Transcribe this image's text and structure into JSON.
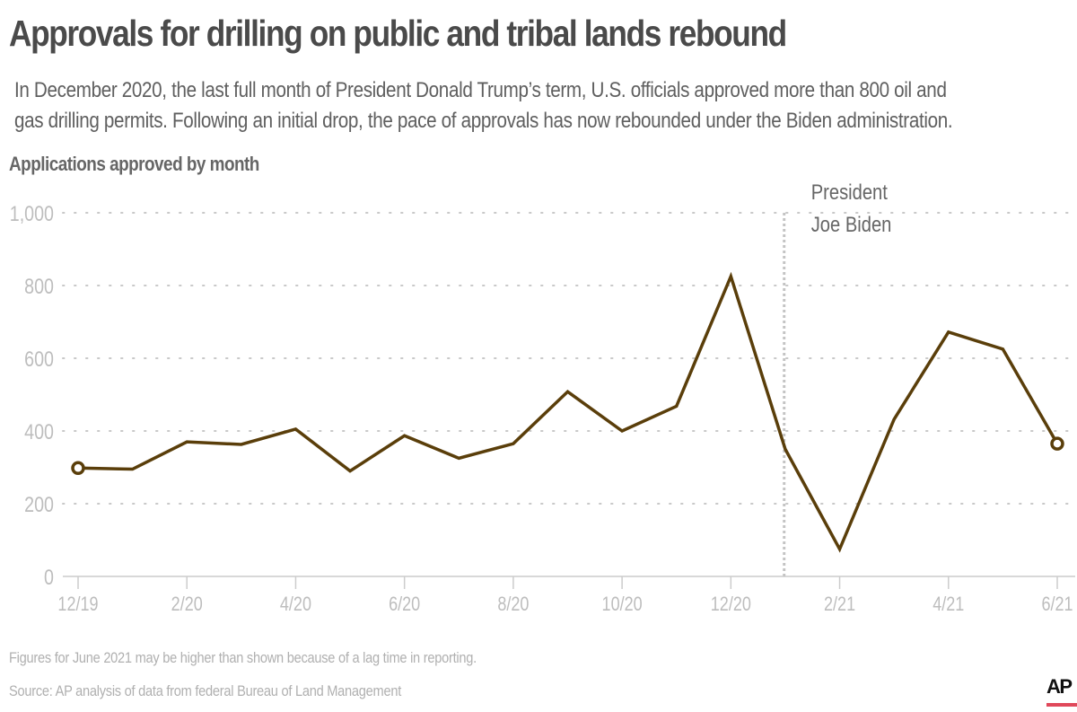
{
  "header": {
    "title": "Approvals for drilling on public and tribal lands rebound",
    "subtitle_lines": [
      "In December 2020, the last full month of President Donald Trump’s term, U.S. officials approved more than 800 oil and",
      "gas drilling permits. Following an initial drop, the pace of approvals has now rebounded under the Biden administration."
    ]
  },
  "chart_label": "Applications approved by month",
  "footer": {
    "note": "Figures for June 2021 may be higher than shown because of a lag time in reporting.",
    "source": "Source: AP analysis of data from federal Bureau of Land Management",
    "logo": "AP"
  },
  "colors": {
    "line": "#5a3e0a",
    "grid": "#c8c8c8",
    "axis": "#cccccc",
    "tick_label": "#bdbdbd",
    "annotation_text": "#666666",
    "logo_accent": "#e0485a"
  },
  "chart_data": {
    "type": "line",
    "title": "Approvals for drilling on public and tribal lands rebound",
    "xlabel": "",
    "ylabel": "Applications approved by month",
    "ylim": [
      0,
      1000
    ],
    "yticks": [
      0,
      200,
      400,
      600,
      800,
      1000
    ],
    "ytick_labels": [
      "0",
      "200",
      "400",
      "600",
      "800",
      "1,000"
    ],
    "x": [
      "12/19",
      "1/20",
      "2/20",
      "3/20",
      "4/20",
      "5/20",
      "6/20",
      "7/20",
      "8/20",
      "9/20",
      "10/20",
      "11/20",
      "12/20",
      "1/21",
      "2/21",
      "3/21",
      "4/21",
      "5/21",
      "6/21"
    ],
    "xtick_labels": [
      "12/19",
      "2/20",
      "4/20",
      "6/20",
      "8/20",
      "10/20",
      "12/20",
      "2/21",
      "4/21",
      "6/21"
    ],
    "series": [
      {
        "name": "Applications approved",
        "values": [
          298,
          295,
          370,
          363,
          405,
          290,
          387,
          325,
          365,
          508,
          400,
          468,
          825,
          350,
          75,
          432,
          672,
          625,
          365
        ]
      }
    ],
    "grid": true,
    "grid_style": "dotted horizontal",
    "markers": "open circles at first and last points",
    "annotations": [
      {
        "text_lines": [
          "President",
          "Joe Biden"
        ],
        "x_position_months_after_start": 12.98,
        "style": "dotted vertical line"
      }
    ],
    "legend": "none"
  }
}
